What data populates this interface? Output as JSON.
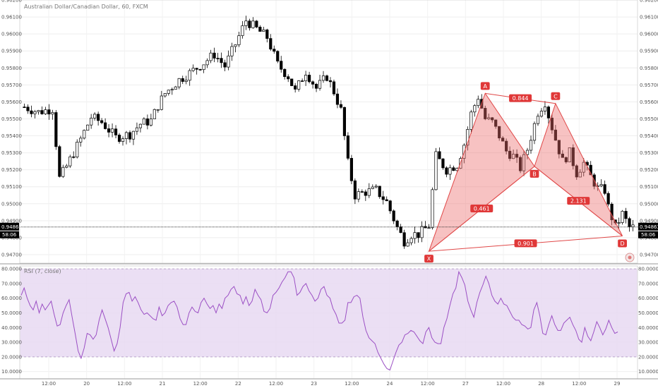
{
  "chart_data": [
    {
      "type": "candlestick",
      "title": "Australian Dollar/Canadian Dollar, 60, FXCM",
      "ylim": [
        0.9465,
        0.962
      ],
      "y_ticks": [
        "0.96200",
        "0.96100",
        "0.96000",
        "0.95900",
        "0.95800",
        "0.95700",
        "0.95600",
        "0.95500",
        "0.95400",
        "0.95300",
        "0.95200",
        "0.95100",
        "0.95000",
        "0.94900",
        "0.94800",
        "0.94700"
      ],
      "x_ticks": [
        "12:00",
        "20",
        "12:00",
        "21",
        "12:00",
        "22",
        "12:00",
        "23",
        "12:00",
        "24",
        "12:00",
        "27",
        "12:00",
        "28",
        "12:00",
        "29"
      ],
      "last_price": "0.94863",
      "countdown": "58:06",
      "close_path": [
        [
          0,
          0.9557
        ],
        [
          4,
          0.9554
        ],
        [
          8,
          0.9556
        ],
        [
          10,
          0.9515
        ],
        [
          12,
          0.9522
        ],
        [
          16,
          0.9538
        ],
        [
          19,
          0.9551
        ],
        [
          22,
          0.9548
        ],
        [
          26,
          0.9539
        ],
        [
          30,
          0.9541
        ],
        [
          33,
          0.9547
        ],
        [
          36,
          0.9549
        ],
        [
          38,
          0.9558
        ],
        [
          40,
          0.9565
        ],
        [
          44,
          0.9573
        ],
        [
          47,
          0.9577
        ],
        [
          51,
          0.9583
        ],
        [
          54,
          0.9588
        ],
        [
          57,
          0.9581
        ],
        [
          60,
          0.9594
        ],
        [
          63,
          0.9608
        ],
        [
          66,
          0.9603
        ],
        [
          69,
          0.9598
        ],
        [
          72,
          0.9582
        ],
        [
          75,
          0.9575
        ],
        [
          77,
          0.9566
        ],
        [
          80,
          0.9578
        ],
        [
          83,
          0.9568
        ],
        [
          86,
          0.9575
        ],
        [
          88,
          0.9566
        ],
        [
          90,
          0.9555
        ],
        [
          92,
          0.9524
        ],
        [
          94,
          0.9505
        ],
        [
          97,
          0.9507
        ],
        [
          100,
          0.9508
        ],
        [
          103,
          0.9501
        ],
        [
          106,
          0.9486
        ],
        [
          108,
          0.9478
        ],
        [
          110,
          0.9482
        ],
        [
          112,
          0.9482
        ],
        [
          115,
          0.9487
        ],
        [
          117,
          0.9528
        ],
        [
          120,
          0.952
        ],
        [
          123,
          0.9523
        ],
        [
          125,
          0.9535
        ],
        [
          127,
          0.9553
        ],
        [
          129,
          0.9563
        ],
        [
          131,
          0.955
        ],
        [
          133,
          0.9548
        ],
        [
          135,
          0.954
        ],
        [
          137,
          0.9531
        ],
        [
          139,
          0.9528
        ],
        [
          141,
          0.9521
        ],
        [
          143,
          0.9532
        ],
        [
          146,
          0.9554
        ],
        [
          148,
          0.956
        ],
        [
          149,
          0.9552
        ],
        [
          151,
          0.9538
        ],
        [
          153,
          0.9525
        ],
        [
          155,
          0.953
        ],
        [
          157,
          0.9518
        ],
        [
          159,
          0.9524
        ],
        [
          161,
          0.9516
        ],
        [
          163,
          0.9509
        ],
        [
          165,
          0.9508
        ],
        [
          166,
          0.9498
        ],
        [
          168,
          0.9486
        ],
        [
          170,
          0.9494
        ],
        [
          172,
          0.9486
        ]
      ],
      "pattern": {
        "points": [
          {
            "label": "X",
            "index": 115,
            "price": 0.9472
          },
          {
            "label": "A",
            "index": 131,
            "price": 0.9565
          },
          {
            "label": "B",
            "index": 145,
            "price": 0.9522
          },
          {
            "label": "C",
            "index": 151,
            "price": 0.9559
          },
          {
            "label": "D",
            "index": 170,
            "price": 0.9481
          }
        ],
        "ratios": [
          "0.461",
          "0.844",
          "2.131",
          "0.901"
        ]
      }
    },
    {
      "type": "line",
      "title": "RSI (7, close)",
      "ylim": [
        5,
        82
      ],
      "y_ticks": [
        "80.0000",
        "70.0000",
        "60.0000",
        "50.0000",
        "40.0000",
        "30.0000",
        "20.0000",
        "10.0000"
      ],
      "bands": [
        20,
        80
      ],
      "values": [
        62,
        67,
        60,
        55,
        52,
        58,
        50,
        56,
        52,
        55,
        58,
        49,
        41,
        42,
        50,
        55,
        59,
        47,
        36,
        24,
        19,
        26,
        36,
        35,
        32,
        35,
        45,
        52,
        46,
        40,
        32,
        24,
        29,
        40,
        57,
        63,
        64,
        58,
        61,
        57,
        52,
        49,
        50,
        48,
        46,
        45,
        54,
        48,
        50,
        55,
        57,
        58,
        54,
        46,
        42,
        42,
        50,
        54,
        51,
        50,
        57,
        60,
        56,
        53,
        55,
        50,
        56,
        53,
        60,
        62,
        66,
        68,
        63,
        62,
        56,
        61,
        55,
        58,
        66,
        62,
        59,
        51,
        50,
        53,
        62,
        64,
        67,
        71,
        74,
        78,
        78,
        74,
        62,
        64,
        68,
        70,
        65,
        62,
        58,
        60,
        66,
        68,
        62,
        60,
        53,
        49,
        43,
        43,
        45,
        57,
        57,
        61,
        62,
        60,
        47,
        38,
        33,
        31,
        29,
        23,
        19,
        15,
        12,
        11,
        17,
        23,
        28,
        30,
        35,
        36,
        38,
        37,
        34,
        31,
        29,
        37,
        40,
        33,
        30,
        29,
        29,
        40,
        46,
        55,
        63,
        67,
        78,
        74,
        69,
        58,
        52,
        47,
        57,
        64,
        69,
        75,
        70,
        62,
        58,
        56,
        60,
        56,
        55,
        51,
        47,
        45,
        45,
        42,
        41,
        39,
        40,
        52,
        57,
        48,
        36,
        35,
        42,
        48,
        42,
        38,
        38,
        43,
        45,
        47,
        42,
        38,
        32,
        30,
        40,
        34,
        31,
        37,
        44,
        40,
        35,
        39,
        45,
        40,
        36,
        37
      ]
    }
  ]
}
